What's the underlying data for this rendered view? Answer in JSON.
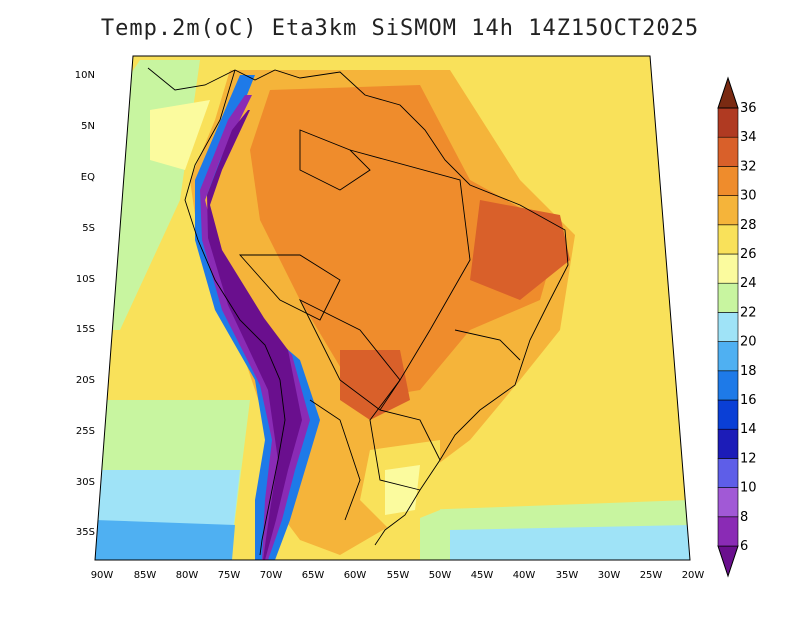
{
  "title": "Temp.2m(oC) Eta3km SiSMOM 14h 14Z15OCT2025",
  "map": {
    "lat_ticks": [
      "10N",
      "5N",
      "EQ",
      "5S",
      "10S",
      "15S",
      "20S",
      "25S",
      "30S",
      "35S"
    ],
    "lon_ticks": [
      "90W",
      "85W",
      "80W",
      "75W",
      "70W",
      "65W",
      "60W",
      "55W",
      "50W",
      "45W",
      "40W",
      "35W",
      "30W",
      "25W",
      "20W"
    ]
  },
  "colorbar": {
    "labels": [
      "6",
      "8",
      "10",
      "12",
      "14",
      "16",
      "18",
      "20",
      "22",
      "24",
      "26",
      "28",
      "30",
      "32",
      "34",
      "36"
    ],
    "colors": [
      "#6a0f8e",
      "#8a2bb5",
      "#a159d6",
      "#5e5ee8",
      "#1c1cb8",
      "#0a3fd6",
      "#1e7ae8",
      "#4fb0f2",
      "#9fe3f7",
      "#c8f5a0",
      "#fbfb9e",
      "#f9e15a",
      "#f5b43a",
      "#ef8c2c",
      "#d9602a",
      "#b03a22",
      "#7a2a12"
    ]
  }
}
